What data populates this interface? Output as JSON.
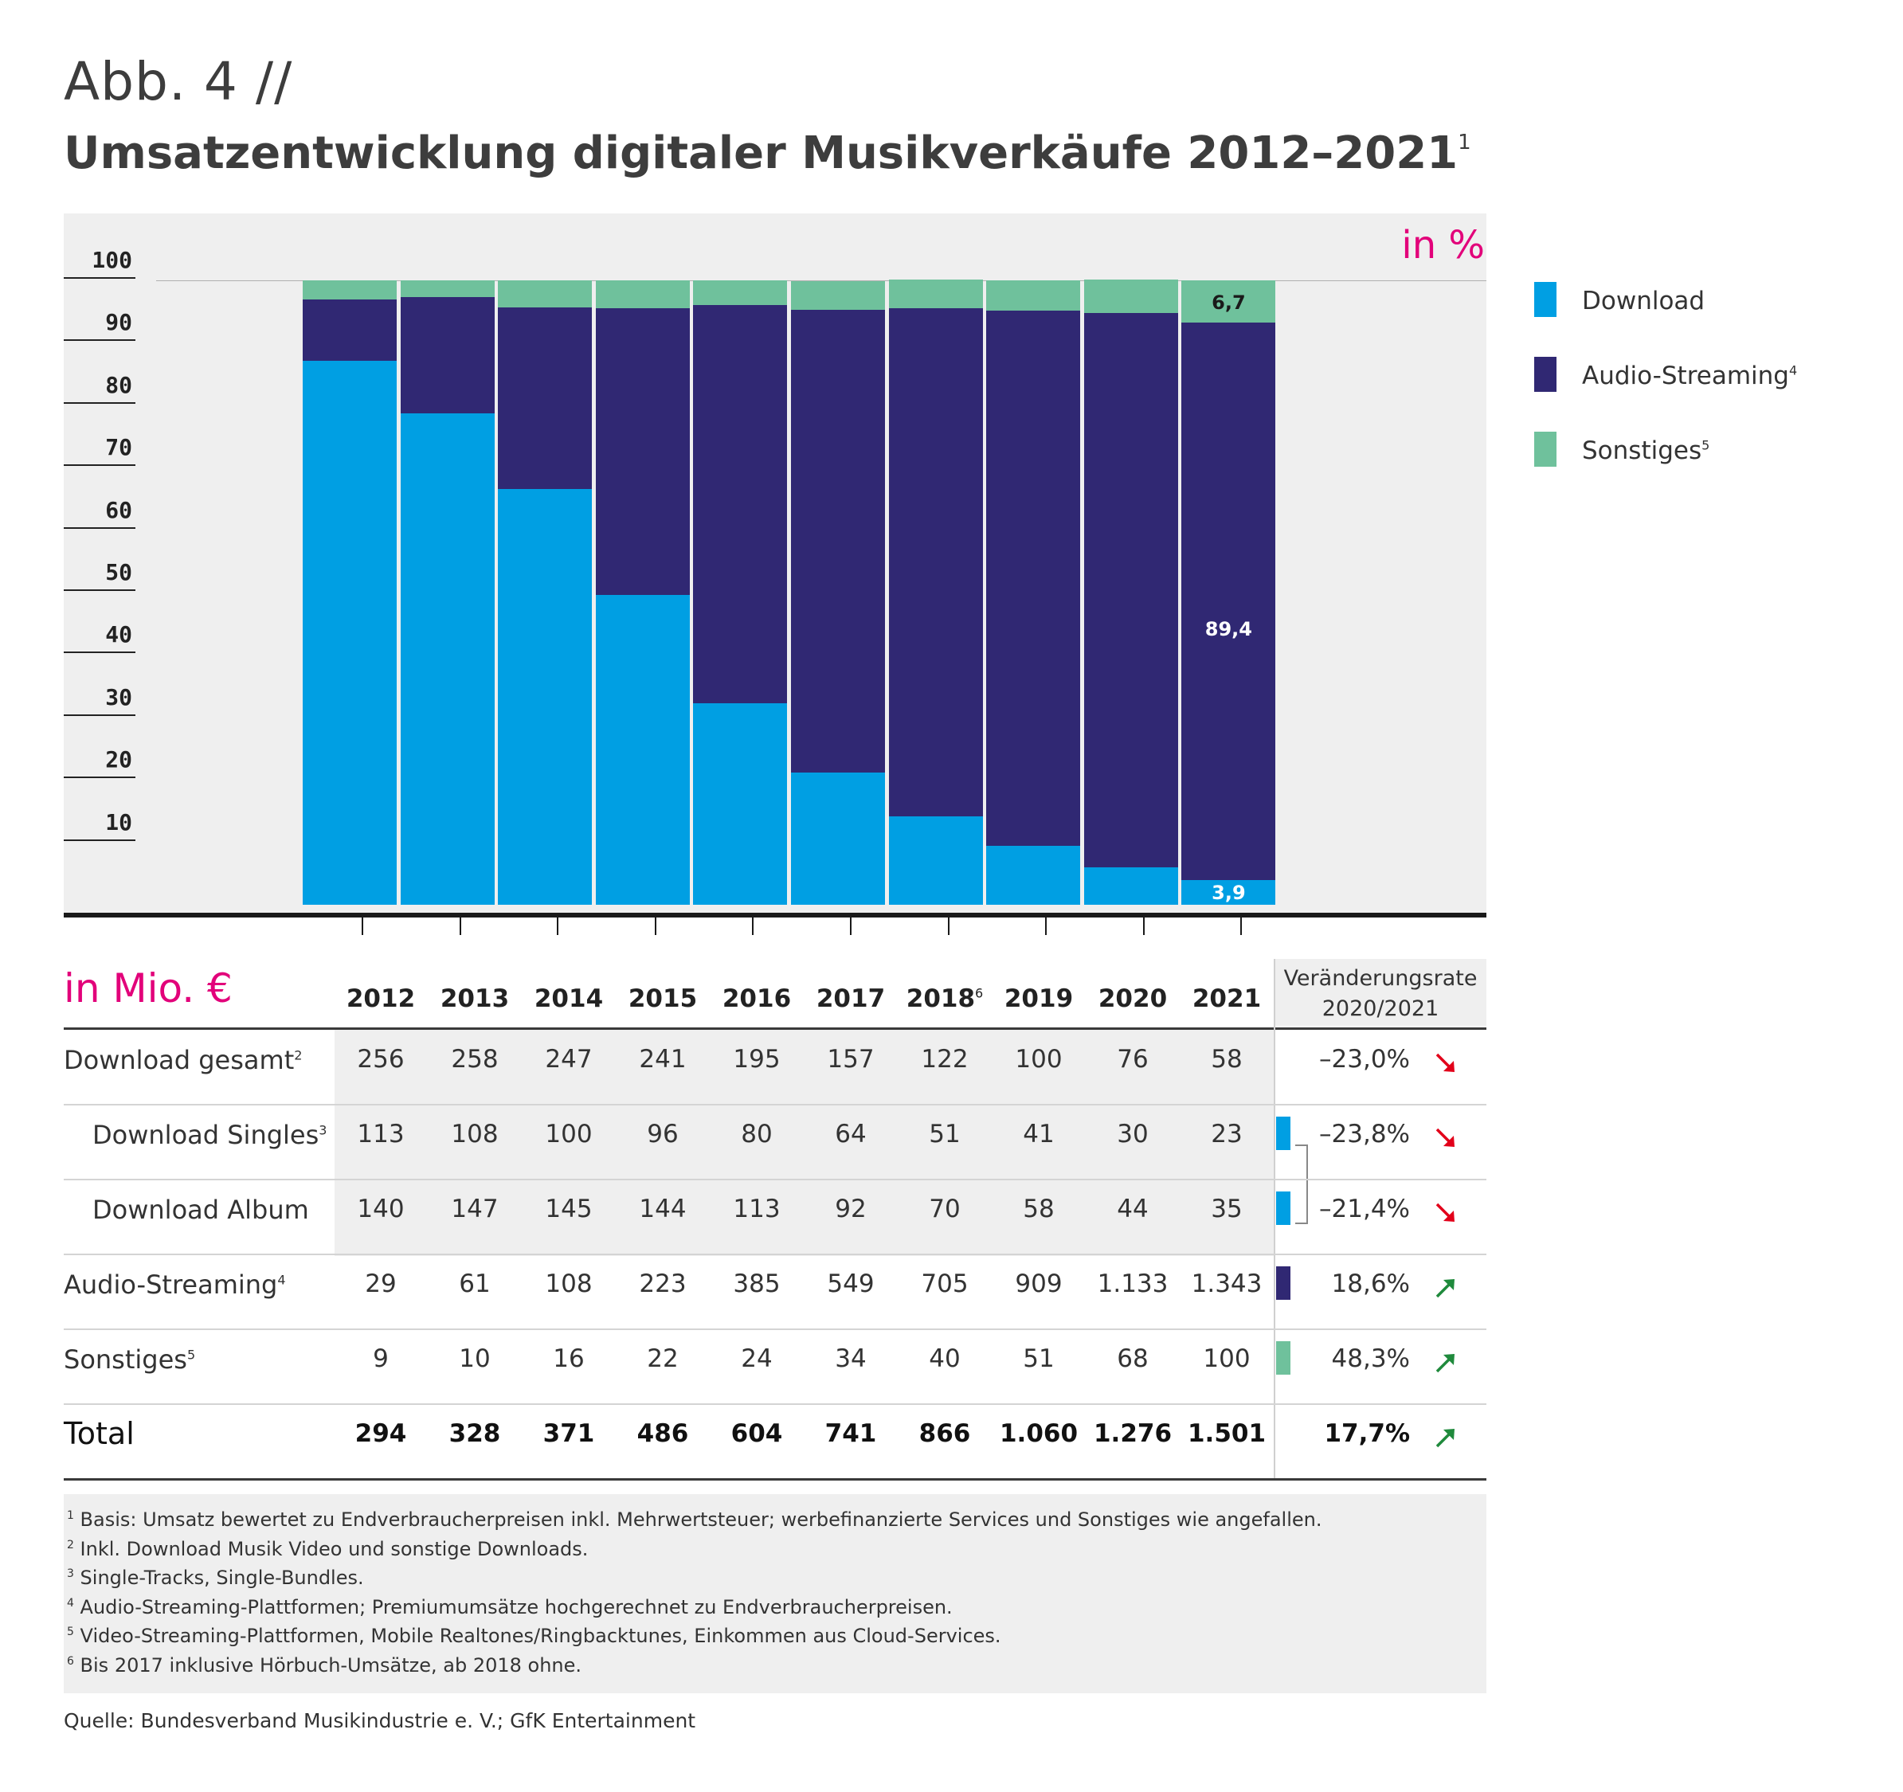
{
  "figure_label": "Abb. 4 //",
  "title": "Umsatzentwicklung digitaler Musikverkäufe 2012–2021",
  "title_sup": "1",
  "unit_percent": "in %",
  "unit_mio": "in Mio. €",
  "colors": {
    "download": "#009fe3",
    "audio_streaming": "#302873",
    "sonstiges": "#6fc19c",
    "accent": "#e2007a",
    "down_arrow": "#e2001a",
    "up_arrow": "#1f8a3c"
  },
  "legend": [
    {
      "label": "Download",
      "sup": ""
    },
    {
      "label": "Audio-Streaming",
      "sup": "4"
    },
    {
      "label": "Sonstiges",
      "sup": "5"
    }
  ],
  "chart_data": {
    "type": "bar",
    "stacked": true,
    "categories": [
      "2012",
      "2013",
      "2014",
      "2015",
      "2016",
      "2017",
      "2018",
      "2019",
      "2020",
      "2021"
    ],
    "ylim": [
      0,
      100
    ],
    "yticks": [
      "10",
      "20",
      "30",
      "40",
      "50",
      "60",
      "70",
      "80",
      "90",
      "100"
    ],
    "series": [
      {
        "name": "Download",
        "values": [
          87.1,
          78.7,
          66.6,
          49.6,
          32.3,
          21.2,
          14.1,
          9.4,
          6.0,
          3.9
        ]
      },
      {
        "name": "Audio-Streaming",
        "values": [
          9.9,
          18.6,
          29.1,
          45.9,
          63.7,
          74.1,
          81.4,
          85.8,
          88.8,
          89.4
        ]
      },
      {
        "name": "Sonstiges",
        "values": [
          3.0,
          2.7,
          4.3,
          4.5,
          4.0,
          4.6,
          4.6,
          4.8,
          5.3,
          6.7
        ]
      }
    ],
    "labels_2021": {
      "download": "3,9",
      "audio_streaming": "89,4",
      "sonstiges": "6,7"
    }
  },
  "table": {
    "years": [
      {
        "label": "2012",
        "sup": ""
      },
      {
        "label": "2013",
        "sup": ""
      },
      {
        "label": "2014",
        "sup": ""
      },
      {
        "label": "2015",
        "sup": ""
      },
      {
        "label": "2016",
        "sup": ""
      },
      {
        "label": "2017",
        "sup": ""
      },
      {
        "label": "2018",
        "sup": "6"
      },
      {
        "label": "2019",
        "sup": ""
      },
      {
        "label": "2020",
        "sup": ""
      },
      {
        "label": "2021",
        "sup": ""
      }
    ],
    "rate_header_line1": "Veränderungsrate",
    "rate_header_line2": "2020/2021",
    "rows": [
      {
        "label": "Download gesamt",
        "sup": "2",
        "values": [
          "256",
          "258",
          "247",
          "241",
          "195",
          "157",
          "122",
          "100",
          "76",
          "58"
        ],
        "rate": "–23,0%",
        "trend": "down"
      },
      {
        "label": "Download Singles",
        "sup": "3",
        "values": [
          "113",
          "108",
          "100",
          "96",
          "80",
          "64",
          "51",
          "41",
          "30",
          "23"
        ],
        "rate": "–23,8%",
        "trend": "down"
      },
      {
        "label": "Download Album",
        "sup": "",
        "values": [
          "140",
          "147",
          "145",
          "144",
          "113",
          "92",
          "70",
          "58",
          "44",
          "35"
        ],
        "rate": "–21,4%",
        "trend": "down"
      },
      {
        "label": "Audio-Streaming",
        "sup": "4",
        "values": [
          "29",
          "61",
          "108",
          "223",
          "385",
          "549",
          "705",
          "909",
          "1.133",
          "1.343"
        ],
        "rate": "18,6%",
        "trend": "up"
      },
      {
        "label": "Sonstiges",
        "sup": "5",
        "values": [
          "9",
          "10",
          "16",
          "22",
          "24",
          "34",
          "40",
          "51",
          "68",
          "100"
        ],
        "rate": "48,3%",
        "trend": "up"
      },
      {
        "label": "Total",
        "sup": "",
        "values": [
          "294",
          "328",
          "371",
          "486",
          "604",
          "741",
          "866",
          "1.060",
          "1.276",
          "1.501"
        ],
        "rate": "17,7%",
        "trend": "up"
      }
    ]
  },
  "footnotes": [
    {
      "n": "1",
      "text": "Basis: Umsatz bewertet zu Endverbraucherpreisen inkl. Mehrwertsteuer; werbefinanzierte Services und Sonstiges wie angefallen."
    },
    {
      "n": "2",
      "text": "Inkl. Download Musik Video und sonstige Downloads."
    },
    {
      "n": "3",
      "text": "Single-Tracks, Single-Bundles."
    },
    {
      "n": "4",
      "text": "Audio-Streaming-Plattformen; Premiumumsätze hochgerechnet zu Endverbraucherpreisen."
    },
    {
      "n": "5",
      "text": "Video-Streaming-Plattformen, Mobile Realtones/Ringbacktunes, Einkommen aus Cloud-Services."
    },
    {
      "n": "6",
      "text": "Bis 2017 inklusive Hörbuch-Umsätze, ab 2018 ohne."
    }
  ],
  "source": "Quelle: Bundesverband Musikindustrie e. V.; GfK Entertainment"
}
